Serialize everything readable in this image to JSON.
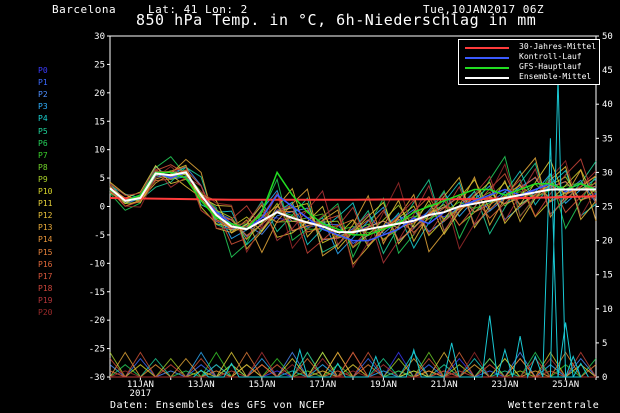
{
  "header": {
    "location": "Barcelona",
    "coords": "Lat: 41 Lon: 2",
    "timestamp": "Tue,10JAN2017 06Z",
    "title": "850 hPa Temp. in °C, 6h-Niederschlag in mm"
  },
  "footer": {
    "source": "Daten: Ensembles des GFS von NCEP",
    "brand": "Wetterzentrale"
  },
  "members": [
    {
      "label": "P0",
      "color": "#3b3bff"
    },
    {
      "label": "P1",
      "color": "#3b6bff"
    },
    {
      "label": "P2",
      "color": "#4f8fff"
    },
    {
      "label": "P3",
      "color": "#2fb0ff"
    },
    {
      "label": "P4",
      "color": "#19d3d3"
    },
    {
      "label": "P5",
      "color": "#1fd39a"
    },
    {
      "label": "P6",
      "color": "#25d25a"
    },
    {
      "label": "P7",
      "color": "#39d12c"
    },
    {
      "label": "P8",
      "color": "#6fd12a"
    },
    {
      "label": "P9",
      "color": "#a8d12a"
    },
    {
      "label": "P10",
      "color": "#d6d42a"
    },
    {
      "label": "P11",
      "color": "#e6d23a"
    },
    {
      "label": "P12",
      "color": "#e8c03a"
    },
    {
      "label": "P13",
      "color": "#e8aa3a"
    },
    {
      "label": "P14",
      "color": "#e8963a"
    },
    {
      "label": "P15",
      "color": "#e5803a"
    },
    {
      "label": "P16",
      "color": "#e0683a"
    },
    {
      "label": "P17",
      "color": "#d6553a"
    },
    {
      "label": "P18",
      "color": "#c9443a"
    },
    {
      "label": "P19",
      "color": "#b3353a"
    },
    {
      "label": "P20",
      "color": "#9a2a2a"
    }
  ],
  "chart_data": {
    "type": "line",
    "title": "850 hPa Temp. in °C, 6h-Niederschlag in mm",
    "x_ticks": [
      "11JAN",
      "13JAN",
      "15JAN",
      "17JAN",
      "19JAN",
      "21JAN",
      "23JAN",
      "25JAN"
    ],
    "x_year_label": "2017",
    "x_range_hours": [
      0,
      384
    ],
    "y_left": {
      "range": [
        -30,
        30
      ],
      "ticks": [
        30,
        25,
        20,
        15,
        10,
        5,
        0,
        -5,
        -10,
        -15,
        -20,
        -25,
        -30
      ]
    },
    "y_right": {
      "range": [
        0,
        50
      ],
      "ticks": [
        50,
        45,
        40,
        35,
        30,
        25,
        20,
        15,
        10,
        5,
        0
      ]
    },
    "grid": false,
    "legend_placement": "top-right",
    "legend": [
      {
        "name": "30-Jahres-Mittel",
        "color": "#ff3b3b"
      },
      {
        "name": "Kontroll-Lauf",
        "color": "#3b5bff"
      },
      {
        "name": "GFS-Hauptlauf",
        "color": "#22dd22"
      },
      {
        "name": "Ensemble-Mittel",
        "color": "#ffffff"
      }
    ],
    "series": {
      "climatology": {
        "x": [
          0,
          96,
          192,
          288,
          384
        ],
        "y": [
          1.5,
          1.2,
          1.2,
          1.3,
          1.8
        ]
      },
      "control": {
        "x": [
          0,
          12,
          24,
          36,
          48,
          60,
          72,
          84,
          96,
          108,
          120,
          132,
          144,
          156,
          168,
          180,
          192,
          204,
          216,
          228,
          240,
          252,
          264,
          276,
          288,
          300,
          312,
          324,
          336,
          348,
          360,
          372,
          384
        ],
        "y": [
          3,
          1,
          2,
          6,
          5,
          6,
          2,
          -1,
          -3,
          -4,
          -2,
          2,
          0,
          -2,
          -4,
          -5,
          -6,
          -6,
          -5,
          -4,
          -2,
          -3,
          -1,
          0,
          1,
          2,
          3,
          2,
          3,
          4,
          3,
          4,
          3
        ]
      },
      "operational": {
        "x": [
          0,
          12,
          24,
          36,
          48,
          60,
          72,
          84,
          96,
          108,
          120,
          132,
          144,
          156,
          168,
          180,
          192,
          204,
          216,
          228,
          240,
          252,
          264,
          276,
          288,
          300,
          312,
          324,
          336,
          348,
          360,
          372,
          384
        ],
        "y": [
          3,
          1,
          2,
          6,
          6,
          5,
          1,
          -2,
          -3,
          -4,
          -1,
          6,
          2,
          -1,
          -3,
          -4,
          -5,
          -5,
          -4,
          -3,
          -1,
          0,
          1,
          2,
          3,
          3,
          2,
          3,
          4,
          4,
          3,
          4,
          3
        ]
      },
      "ensemble_mean": {
        "x": [
          0,
          12,
          24,
          36,
          48,
          60,
          72,
          84,
          96,
          108,
          120,
          132,
          144,
          156,
          168,
          180,
          192,
          204,
          216,
          228,
          240,
          252,
          264,
          276,
          288,
          300,
          312,
          324,
          336,
          348,
          360,
          372,
          384
        ],
        "y": [
          3.2,
          1,
          1.5,
          5.8,
          5.5,
          6,
          2,
          -1.5,
          -3.5,
          -4,
          -2.5,
          -1,
          -2,
          -2.8,
          -3.5,
          -4.5,
          -4.5,
          -4,
          -3.5,
          -3,
          -2.5,
          -1.5,
          -1,
          0,
          0.5,
          1,
          1.5,
          2,
          2.5,
          3,
          3,
          3,
          3
        ]
      },
      "precip_mm": {
        "x": [
          72,
          96,
          150,
          180,
          210,
          240,
          270,
          300,
          312,
          324,
          336,
          348,
          354,
          360,
          366,
          372
        ],
        "y": [
          1,
          2,
          4,
          2,
          3,
          4,
          5,
          9,
          4,
          6,
          3,
          35,
          44,
          8,
          3,
          2
        ]
      }
    }
  }
}
